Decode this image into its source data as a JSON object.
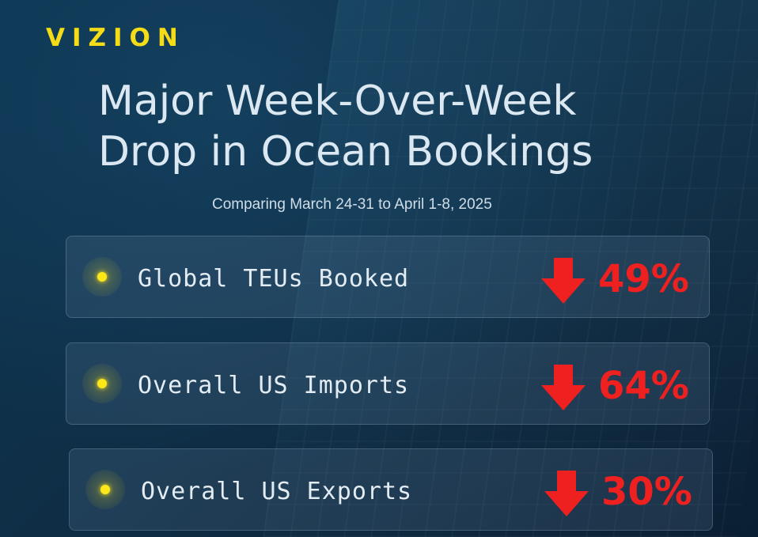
{
  "brand": {
    "logo": "VIZION",
    "logo_color": "#f4dd16"
  },
  "header": {
    "title_line1": "Major Week-Over-Week",
    "title_line2": "Drop in Ocean Bookings",
    "subtitle": "Comparing March 24-31 to April 1-8, 2025"
  },
  "metrics": [
    {
      "label": "Global TEUs Booked",
      "change": "49%",
      "direction": "down",
      "icon": "down-arrow-icon"
    },
    {
      "label": "Overall US Imports",
      "change": "64%",
      "direction": "down",
      "icon": "down-arrow-icon"
    },
    {
      "label": "Overall US Exports",
      "change": "30%",
      "direction": "down",
      "icon": "down-arrow-icon"
    }
  ],
  "colors": {
    "accent": "#f4dd16",
    "decrease": "#ee2020",
    "background": "#0f2e46"
  }
}
